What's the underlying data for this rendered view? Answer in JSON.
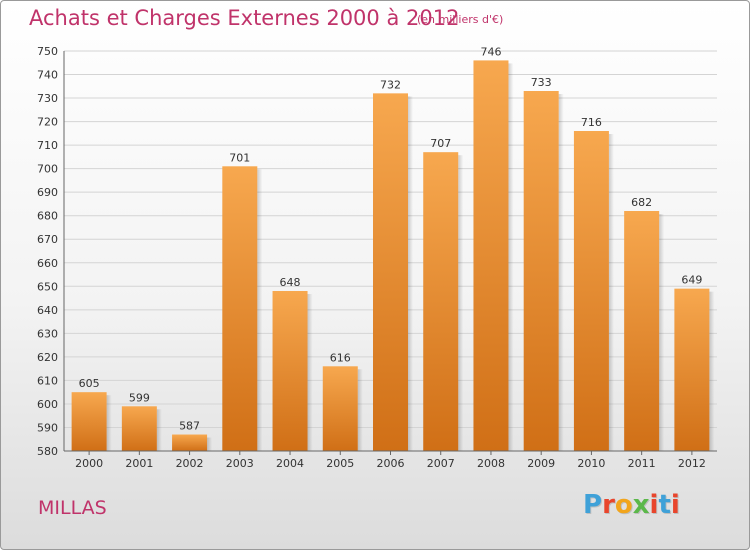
{
  "title": "Achats et Charges Externes 2000 à 2012",
  "subtitle": "(en milliers d'€)",
  "commune": "MILLAS",
  "logo": {
    "letters": [
      "P",
      "r",
      "o",
      "x",
      "i",
      "t",
      "i"
    ],
    "colors": [
      "#3fa1d8",
      "#e8452c",
      "#f2a51c",
      "#5bb84a",
      "#e8452c",
      "#3fa1d8",
      "#e8452c"
    ]
  },
  "colors": {
    "bar_light": "#f7a84f",
    "bar_dark": "#d06f16",
    "title": "#c0336a",
    "grid": "#d4d4d4"
  },
  "chart_data": {
    "type": "bar",
    "title": "Achats et Charges Externes 2000 à 2012",
    "subtitle": "(en milliers d'€)",
    "categories": [
      "2000",
      "2001",
      "2002",
      "2003",
      "2004",
      "2005",
      "2006",
      "2007",
      "2008",
      "2009",
      "2010",
      "2011",
      "2012"
    ],
    "values": [
      605,
      599,
      587,
      701,
      648,
      616,
      732,
      707,
      746,
      733,
      716,
      682,
      649
    ],
    "ylim": [
      580,
      750
    ],
    "yticks": [
      580,
      590,
      600,
      610,
      620,
      630,
      640,
      650,
      660,
      670,
      680,
      690,
      700,
      710,
      720,
      730,
      740,
      750
    ],
    "grid": true,
    "xlabel": "",
    "ylabel": ""
  }
}
